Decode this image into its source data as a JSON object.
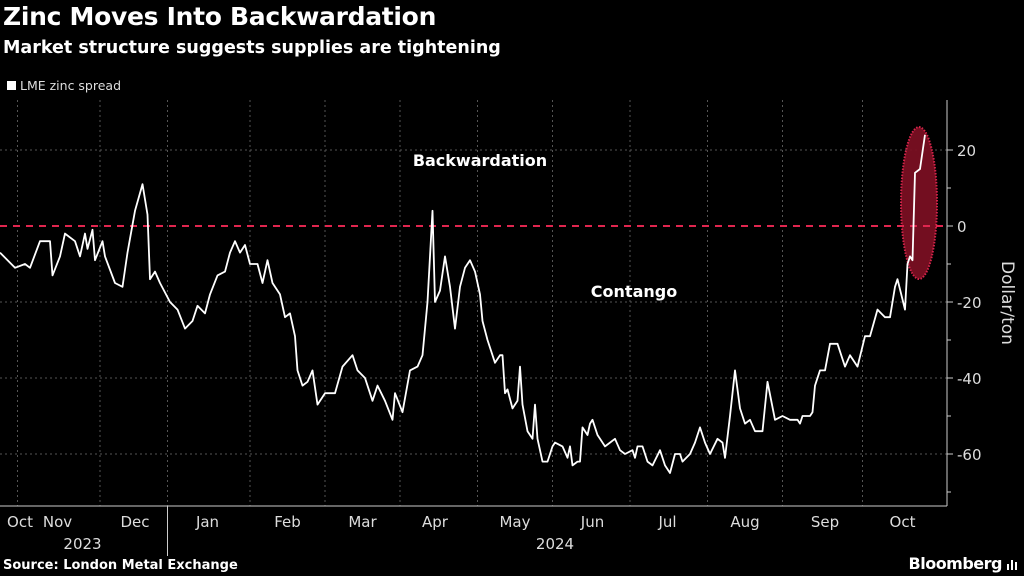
{
  "title": "Zinc Moves Into Backwardation",
  "subtitle": "Market structure suggests supplies are tightening",
  "source": "Source: London Metal Exchange",
  "brand": "Bloomberg",
  "chart_data": {
    "type": "line",
    "title": "Zinc Moves Into Backwardation",
    "ylabel": "Dollar/ton",
    "ylim": [
      -73,
      32
    ],
    "x_unit": "days (approx, Oct 2023 – Oct 2024)",
    "xlim": [
      0,
      374
    ],
    "yticks": [
      20,
      0,
      -20,
      -40,
      -60
    ],
    "grid": true,
    "legend": {
      "position": "top-left",
      "entries": [
        "LME zinc spread"
      ]
    },
    "annotations": [
      "Backwardation",
      "Contango"
    ],
    "reference_line": {
      "y": 0,
      "color": "#e0264f",
      "style": "dashed"
    },
    "highlight": "ellipse around latest surge",
    "colors": {
      "line": "#ffffff",
      "accent": "#e0264f",
      "highlight_fill": "#7a0f22"
    },
    "month_ticks": [
      {
        "label": "Oct",
        "day": 8
      },
      {
        "label": "Nov",
        "day": 23
      },
      {
        "label": "Dec",
        "day": 54
      },
      {
        "label": "Jan",
        "day": 83
      },
      {
        "label": "Feb",
        "day": 115
      },
      {
        "label": "Mar",
        "day": 145
      },
      {
        "label": "Apr",
        "day": 174
      },
      {
        "label": "May",
        "day": 206
      },
      {
        "label": "Jun",
        "day": 237
      },
      {
        "label": "Jul",
        "day": 267
      },
      {
        "label": "Aug",
        "day": 298
      },
      {
        "label": "Sep",
        "day": 330
      },
      {
        "label": "Oct",
        "day": 361
      }
    ],
    "gridline_days": [
      7,
      40,
      67,
      100,
      130,
      160,
      191,
      221,
      252,
      283,
      313,
      345
    ],
    "years": [
      {
        "label": "2023",
        "day": 33
      },
      {
        "label": "2024",
        "day": 222
      }
    ],
    "series": [
      {
        "name": "LME zinc spread",
        "x": [
          0,
          6,
          10,
          12,
          16,
          20,
          21,
          24,
          26,
          30,
          32,
          34,
          35,
          37,
          38,
          41,
          42,
          46,
          49,
          51,
          54,
          57,
          59,
          60,
          62,
          64,
          68,
          71,
          74,
          77,
          79,
          82,
          84,
          87,
          90,
          92,
          94,
          96,
          98,
          100,
          103,
          105,
          107,
          109,
          112,
          114,
          116,
          118,
          119,
          121,
          123,
          125,
          127,
          130,
          134,
          137,
          141,
          143,
          146,
          149,
          151,
          154,
          157,
          158,
          161,
          164,
          167,
          169,
          171,
          173,
          174,
          176,
          178,
          180,
          182,
          184,
          186,
          188,
          190,
          192,
          193,
          195,
          198,
          200,
          201,
          202,
          203,
          205,
          207,
          208,
          209,
          211,
          213,
          214,
          215,
          217,
          219,
          221,
          222,
          225,
          227,
          228,
          229,
          231,
          232,
          233,
          235,
          236,
          237,
          239,
          240,
          242,
          244,
          246,
          248,
          250,
          253,
          254,
          255,
          257,
          259,
          261,
          264,
          266,
          268,
          270,
          272,
          273,
          276,
          278,
          280,
          282,
          284,
          287,
          289,
          290,
          292,
          294,
          296,
          298,
          300,
          302,
          305,
          307,
          310,
          313,
          316,
          319,
          320,
          321,
          324,
          325,
          326,
          328,
          330,
          332,
          335,
          338,
          340,
          343,
          346,
          348,
          351,
          354,
          356,
          358,
          359,
          362,
          363,
          364,
          365,
          366,
          368,
          370
        ],
        "y": [
          -7,
          -11,
          -10,
          -11,
          -4,
          -4,
          -13,
          -8,
          -2,
          -4,
          -8,
          -2,
          -6,
          -1,
          -9,
          -4,
          -8,
          -15,
          -16,
          -7,
          4,
          11,
          3,
          -14,
          -12,
          -15,
          -20,
          -22,
          -27,
          -25,
          -21,
          -23,
          -18,
          -13,
          -12,
          -7,
          -4,
          -7,
          -5,
          -10,
          -10,
          -15,
          -9,
          -15,
          -18,
          -24,
          -23,
          -29,
          -38,
          -42,
          -41,
          -38,
          -47,
          -44,
          -44,
          -37,
          -34,
          -38,
          -40,
          -46,
          -42,
          -46,
          -51,
          -44,
          -49,
          -38,
          -37,
          -34,
          -20,
          4,
          -20,
          -17,
          -8,
          -16,
          -27,
          -16,
          -11,
          -9,
          -12,
          -18,
          -25,
          -30,
          -36,
          -34,
          -34,
          -44,
          -43,
          -48,
          -46,
          -37,
          -47,
          -54,
          -56,
          -47,
          -56,
          -62,
          -62,
          -58,
          -57,
          -58,
          -61,
          -58,
          -63,
          -62,
          -62,
          -53,
          -55,
          -52,
          -51,
          -55,
          -56,
          -58,
          -57,
          -56,
          -59,
          -60,
          -59,
          -61,
          -58,
          -58,
          -62,
          -63,
          -59,
          -63,
          -65,
          -60,
          -60,
          -62,
          -60,
          -57,
          -53,
          -57,
          -60,
          -56,
          -57,
          -61,
          -50,
          -38,
          -48,
          -52,
          -51,
          -54,
          -54,
          -41,
          -51,
          -50,
          -51,
          -51,
          -52,
          -50,
          -50,
          -49,
          -42,
          -38,
          -38,
          -31,
          -31,
          -37,
          -34,
          -37,
          -29,
          -29,
          -22,
          -24,
          -24,
          -16,
          -14,
          -22,
          -10,
          -8,
          -9,
          14,
          15,
          24
        ]
      }
    ]
  }
}
